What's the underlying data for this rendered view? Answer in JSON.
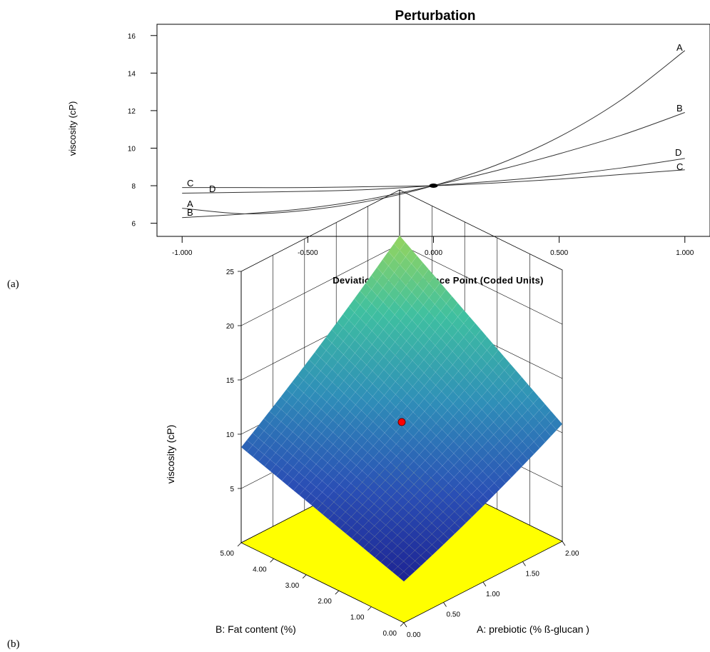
{
  "panels": {
    "a": "(a)",
    "b": "(b)"
  },
  "chart_data": [
    {
      "type": "line",
      "title": "Perturbation",
      "xlabel": "Deviation from Reference Point (Coded Units)",
      "ylabel": "viscosity (cP)",
      "xlim": [
        -1.1,
        1.1
      ],
      "ylim": [
        5.3,
        16.6
      ],
      "x_ticks": [
        -1.0,
        -0.5,
        0.0,
        0.5,
        1.0
      ],
      "x_tick_labels": [
        "-1.000",
        "-0.500",
        "0.000",
        "0.500",
        "1.000"
      ],
      "y_ticks": [
        6,
        8,
        10,
        12,
        14,
        16
      ],
      "y_tick_labels": [
        "6",
        "8",
        "10",
        "12",
        "14",
        "16"
      ],
      "grid": false,
      "reference_point": {
        "x": 0.0,
        "y": 8.0
      },
      "series": [
        {
          "name": "A",
          "x": [
            -1.0,
            -0.75,
            -0.5,
            -0.25,
            0.0,
            0.25,
            0.5,
            0.75,
            1.0
          ],
          "y": [
            6.8,
            6.5,
            6.7,
            7.2,
            8.0,
            9.1,
            10.6,
            12.6,
            15.2
          ]
        },
        {
          "name": "B",
          "x": [
            -1.0,
            -0.75,
            -0.5,
            -0.25,
            0.0,
            0.25,
            0.5,
            0.75,
            1.0
          ],
          "y": [
            6.3,
            6.5,
            6.8,
            7.3,
            8.0,
            8.8,
            9.7,
            10.7,
            11.9
          ]
        },
        {
          "name": "C",
          "x": [
            -1.0,
            -0.75,
            -0.5,
            -0.25,
            0.0,
            0.25,
            0.5,
            0.75,
            1.0
          ],
          "y": [
            7.9,
            7.9,
            7.9,
            7.95,
            8.0,
            8.15,
            8.35,
            8.6,
            8.85
          ]
        },
        {
          "name": "D",
          "x": [
            -1.0,
            -0.75,
            -0.5,
            -0.25,
            0.0,
            0.25,
            0.5,
            0.75,
            1.0
          ],
          "y": [
            7.6,
            7.65,
            7.7,
            7.8,
            8.0,
            8.25,
            8.55,
            8.95,
            9.45
          ]
        }
      ]
    },
    {
      "type": "surface3d",
      "zlabel": "viscosity (cP)",
      "xlabel": "A: prebiotic (% ß-glucan )",
      "ylabel": "B: Fat content (%)",
      "xlim": [
        0,
        2
      ],
      "ylim": [
        0,
        5
      ],
      "zlim": [
        0,
        25
      ],
      "x_tick_labels": [
        "0.00",
        "0.50",
        "1.00",
        "1.50",
        "2.00"
      ],
      "y_tick_labels": [
        "0.00",
        "1.00",
        "2.00",
        "3.00",
        "4.00",
        "5.00"
      ],
      "z_tick_labels": [
        "5",
        "10",
        "15",
        "20",
        "25"
      ],
      "corner_values": {
        "A0_B0": 3.5,
        "A2_B0": 10.5,
        "A0_B5": 8.5,
        "A2_B5": 20.5
      },
      "colormap": [
        "#1a1a8c",
        "#2a4fb5",
        "#2f8fb8",
        "#3fc0a0",
        "#9ad65a"
      ],
      "floor_color": "#ffff00",
      "design_point": {
        "A": 1.0,
        "B": 2.5,
        "z": 8.0,
        "color": "#ff0000"
      }
    }
  ]
}
